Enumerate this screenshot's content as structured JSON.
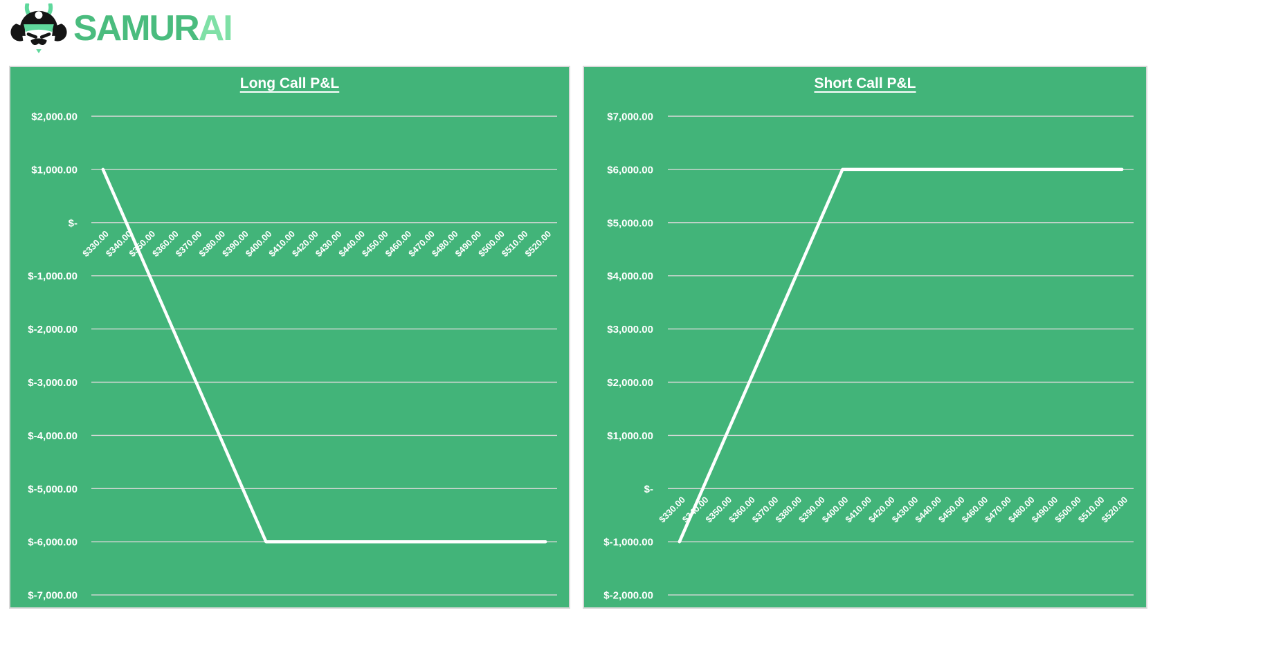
{
  "logo": {
    "brand_primary": "SAMUR",
    "brand_accent": "AI",
    "icon": "samurai-helmet-icon"
  },
  "colors": {
    "panel_green": "#42b479",
    "panel_border": "#d9d9d9",
    "gridline": "#d9d9d9",
    "data_line": "#ffffff",
    "label_text": "#ffffff",
    "logo_primary": "#4abc7e",
    "logo_accent": "#7fe0a6",
    "logo_black": "#151515",
    "logo_mint": "#5fd89c"
  },
  "chart_data": [
    {
      "type": "line",
      "title": "Long Call P&L",
      "grid": true,
      "legend": false,
      "x_labels": [
        "$330.00",
        "$340.00",
        "$350.00",
        "$360.00",
        "$370.00",
        "$380.00",
        "$390.00",
        "$400.00",
        "$410.00",
        "$420.00",
        "$430.00",
        "$440.00",
        "$450.00",
        "$460.00",
        "$470.00",
        "$480.00",
        "$490.00",
        "$500.00",
        "$510.00",
        "$520.00"
      ],
      "x_values": [
        330,
        340,
        350,
        360,
        370,
        380,
        390,
        400,
        410,
        420,
        430,
        440,
        450,
        460,
        470,
        480,
        490,
        500,
        510,
        520
      ],
      "values": [
        1000,
        0,
        -1000,
        -2000,
        -3000,
        -4000,
        -5000,
        -6000,
        -6000,
        -6000,
        -6000,
        -6000,
        -6000,
        -6000,
        -6000,
        -6000,
        -6000,
        -6000,
        -6000,
        -6000
      ],
      "y_tick_labels": [
        "$2,000.00",
        "$1,000.00",
        "$-",
        "$-1,000.00",
        "$-2,000.00",
        "$-3,000.00",
        "$-4,000.00",
        "$-5,000.00",
        "$-6,000.00",
        "$-7,000.00"
      ],
      "y_tick_values": [
        2000,
        1000,
        0,
        -1000,
        -2000,
        -3000,
        -4000,
        -5000,
        -6000,
        -7000
      ],
      "ylim": [
        -7000,
        2000
      ],
      "x_axis_position": 0
    },
    {
      "type": "line",
      "title": "Short Call P&L",
      "grid": true,
      "legend": false,
      "x_labels": [
        "$330.00",
        "$340.00",
        "$350.00",
        "$360.00",
        "$370.00",
        "$380.00",
        "$390.00",
        "$400.00",
        "$410.00",
        "$420.00",
        "$430.00",
        "$440.00",
        "$450.00",
        "$460.00",
        "$470.00",
        "$480.00",
        "$490.00",
        "$500.00",
        "$510.00",
        "$520.00"
      ],
      "x_values": [
        330,
        340,
        350,
        360,
        370,
        380,
        390,
        400,
        410,
        420,
        430,
        440,
        450,
        460,
        470,
        480,
        490,
        500,
        510,
        520
      ],
      "values": [
        -1000,
        0,
        1000,
        2000,
        3000,
        4000,
        5000,
        6000,
        6000,
        6000,
        6000,
        6000,
        6000,
        6000,
        6000,
        6000,
        6000,
        6000,
        6000,
        6000
      ],
      "y_tick_labels": [
        "$7,000.00",
        "$6,000.00",
        "$5,000.00",
        "$4,000.00",
        "$3,000.00",
        "$2,000.00",
        "$1,000.00",
        "$-",
        "$-1,000.00",
        "$-2,000.00"
      ],
      "y_tick_values": [
        7000,
        6000,
        5000,
        4000,
        3000,
        2000,
        1000,
        0,
        -1000,
        -2000
      ],
      "ylim": [
        -2000,
        7000
      ],
      "x_axis_position": 0
    }
  ]
}
